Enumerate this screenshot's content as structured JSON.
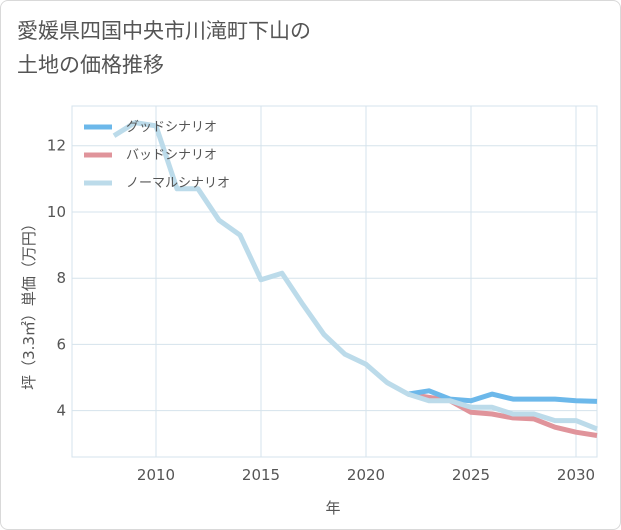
{
  "title_lines": [
    "愛媛県四国中央市川滝町下山の",
    "土地の価格推移"
  ],
  "chart_data": {
    "type": "line",
    "title": "愛媛県四国中央市川滝町下山の土地の価格推移",
    "xlabel": "年",
    "ylabel": "坪（3.3㎡）単価（万円）",
    "xlim": [
      2006,
      2031
    ],
    "ylim": [
      2.6,
      13.2
    ],
    "xticks": [
      2010,
      2015,
      2020,
      2025,
      2030
    ],
    "yticks": [
      4,
      6,
      8,
      10,
      12
    ],
    "grid": true,
    "legend_position": "top-left",
    "series": [
      {
        "name": "グッドシナリオ",
        "color": "#6cb8ea",
        "x": [
          2022,
          2023,
          2024,
          2025,
          2026,
          2027,
          2028,
          2029,
          2030,
          2031
        ],
        "y": [
          4.5,
          4.6,
          4.35,
          4.3,
          4.5,
          4.35,
          4.35,
          4.35,
          4.3,
          4.28
        ]
      },
      {
        "name": "バッドシナリオ",
        "color": "#e0949b",
        "x": [
          2022,
          2023,
          2024,
          2025,
          2026,
          2027,
          2028,
          2029,
          2030,
          2031
        ],
        "y": [
          4.5,
          4.4,
          4.3,
          3.95,
          3.9,
          3.78,
          3.75,
          3.5,
          3.35,
          3.25
        ]
      },
      {
        "name": "ノーマルシナリオ",
        "color": "#bcdbea",
        "x": [
          2008,
          2009,
          2010,
          2011,
          2012,
          2013,
          2014,
          2015,
          2016,
          2017,
          2018,
          2019,
          2020,
          2021,
          2022,
          2023,
          2024,
          2025,
          2026,
          2027,
          2028,
          2029,
          2030,
          2031
        ],
        "y": [
          12.3,
          12.7,
          12.6,
          10.7,
          10.7,
          9.75,
          9.3,
          7.95,
          8.15,
          7.2,
          6.3,
          5.7,
          5.4,
          4.85,
          4.5,
          4.3,
          4.3,
          4.1,
          4.1,
          3.9,
          3.9,
          3.7,
          3.7,
          3.45
        ]
      }
    ]
  }
}
